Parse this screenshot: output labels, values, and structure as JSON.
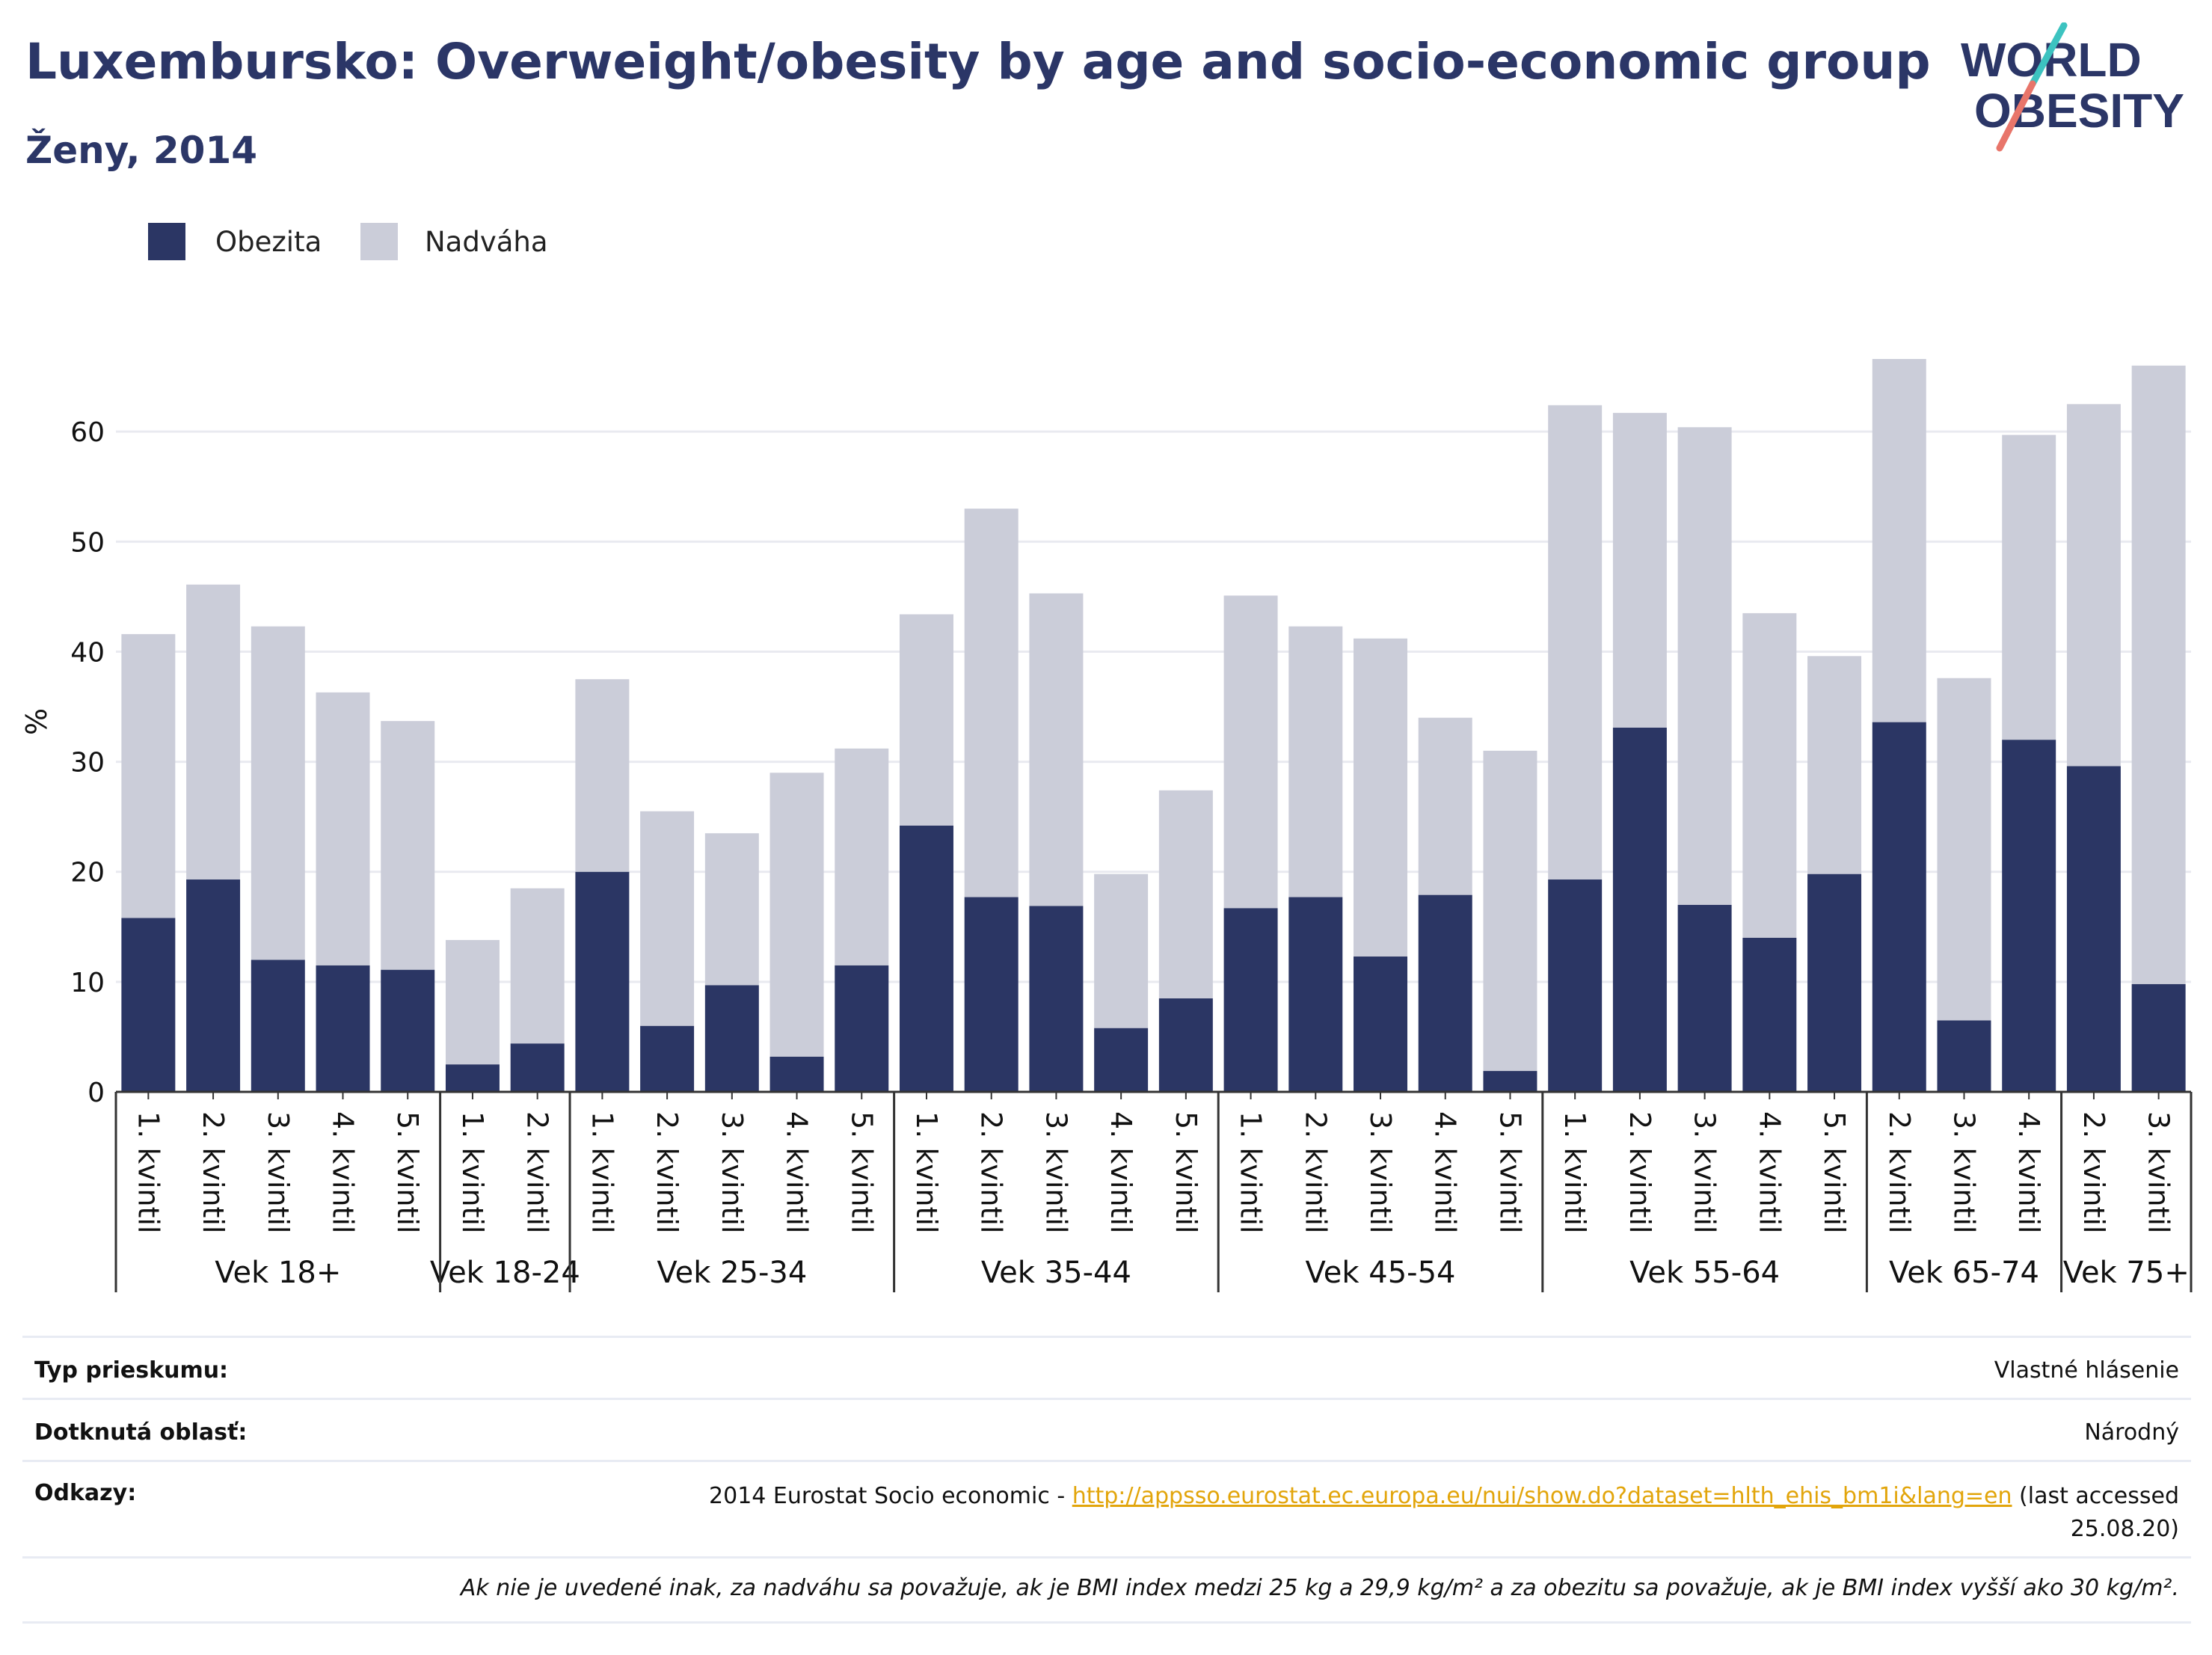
{
  "header": {
    "title": "Luxembursko: Overweight/obesity by age and socio-economic group",
    "subtitle": "Ženy, 2014"
  },
  "logo": {
    "line1": "WORLD",
    "line2": "OBESITY",
    "accent_colors": [
      "#3cc3c0",
      "#e8756a"
    ]
  },
  "legend": [
    {
      "label": "Obezita",
      "color": "#2b3664"
    },
    {
      "label": "Nadváha",
      "color": "#cbcdd9"
    }
  ],
  "chart_data": {
    "type": "bar",
    "stacked": true,
    "ylabel": "%",
    "ylim": [
      0,
      70
    ],
    "yticks": [
      0,
      10,
      20,
      30,
      40,
      50,
      60
    ],
    "grid": true,
    "legend_position": "top-left",
    "groups": [
      {
        "name": "Vek 18+",
        "categories": [
          "1. kvintil",
          "2. kvintil",
          "3. kvintil",
          "4. kvintil",
          "5. kvintil"
        ]
      },
      {
        "name": "Vek 18-24",
        "categories": [
          "1. kvintil",
          "2. kvintil"
        ]
      },
      {
        "name": "Vek 25-34",
        "categories": [
          "1. kvintil",
          "2. kvintil",
          "3. kvintil",
          "4. kvintil",
          "5. kvintil"
        ]
      },
      {
        "name": "Vek 35-44",
        "categories": [
          "1. kvintil",
          "2. kvintil",
          "3. kvintil",
          "4. kvintil",
          "5. kvintil"
        ]
      },
      {
        "name": "Vek 45-54",
        "categories": [
          "1. kvintil",
          "2. kvintil",
          "3. kvintil",
          "4. kvintil",
          "5. kvintil"
        ]
      },
      {
        "name": "Vek 55-64",
        "categories": [
          "1. kvintil",
          "2. kvintil",
          "3. kvintil",
          "4. kvintil",
          "5. kvintil"
        ]
      },
      {
        "name": "Vek 65-74",
        "categories": [
          "2. kvintil",
          "3. kvintil",
          "4. kvintil"
        ]
      },
      {
        "name": "Vek 75+",
        "categories": [
          "2. kvintil",
          "3. kvintil"
        ]
      }
    ],
    "series": [
      {
        "name": "Obezita",
        "color": "#2b3664",
        "values": [
          15.8,
          19.3,
          12.0,
          11.5,
          11.1,
          2.5,
          4.4,
          20.0,
          6.0,
          9.7,
          3.2,
          11.5,
          24.2,
          17.7,
          16.9,
          5.8,
          8.5,
          16.7,
          17.7,
          12.3,
          17.9,
          1.9,
          19.3,
          33.1,
          17.0,
          14.0,
          19.8,
          33.6,
          6.5,
          32.0,
          29.6,
          9.8
        ]
      },
      {
        "name": "Nadváha",
        "color": "#cbcdd9",
        "values": [
          25.8,
          26.8,
          30.3,
          24.8,
          22.6,
          11.3,
          14.1,
          17.5,
          19.5,
          13.8,
          25.8,
          19.7,
          19.2,
          35.3,
          28.4,
          14.0,
          18.9,
          28.4,
          24.6,
          28.9,
          16.1,
          29.1,
          43.1,
          28.6,
          43.4,
          29.5,
          19.8,
          33.0,
          31.1,
          27.7,
          32.9,
          56.2
        ]
      }
    ]
  },
  "info": {
    "survey_type_label": "Typ prieskumu:",
    "survey_type_value": "Vlastné hlásenie",
    "area_label": "Dotknutá oblasť:",
    "area_value": "Národný",
    "refs_label": "Odkazy:",
    "refs_prefix": "2014 Eurostat Socio economic - ",
    "refs_link": "http://appsso.eurostat.ec.europa.eu/nui/show.do?dataset=hlth_ehis_bm1i&lang=en",
    "refs_suffix": " (last accessed",
    "refs_date": "25.08.20)",
    "note": "Ak nie je uvedené inak, za nadváhu sa považuje, ak je BMI index medzi 25 kg a 29,9 kg/m² a za obezitu sa považuje, ak je BMI index vyšší ako 30 kg/m²."
  }
}
